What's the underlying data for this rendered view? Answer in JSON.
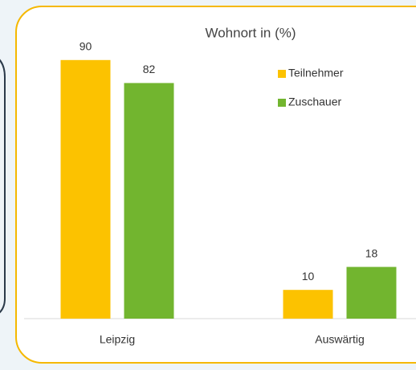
{
  "chart_data": {
    "type": "bar",
    "title": "Wohnort in (%)",
    "categories": [
      "Leipzig",
      "Auswärtig"
    ],
    "series": [
      {
        "name": "Teilnehmer",
        "color": "#fcc200",
        "values": [
          90,
          10
        ]
      },
      {
        "name": "Zuschauer",
        "color": "#72b52f",
        "values": [
          82,
          18
        ]
      }
    ],
    "ylim": [
      0,
      100
    ],
    "legend": "top-right"
  }
}
